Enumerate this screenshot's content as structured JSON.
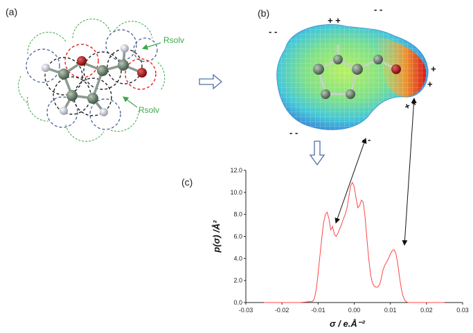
{
  "panels": {
    "a": {
      "label": "(a)",
      "rsolv_top": "Rsolv",
      "rsolv_bottom": "Rsolv"
    },
    "b": {
      "label": "(b)"
    },
    "c": {
      "label": "(c)"
    }
  },
  "charge_signs": {
    "top_positive": "+ +",
    "top_negative": "- -",
    "left_negative": "- -",
    "right_positive_1": "+",
    "right_positive_2": "+",
    "bottom_right_positive": "+ +",
    "bottom_left_negative": "- -",
    "bottom_mid_negative": "- -"
  },
  "colors": {
    "curve": "#ff4444",
    "rsolv": "#3aa84a",
    "arrow_hollow": "#4f6fa8",
    "circle_black": "#222222",
    "circle_red": "#e02020",
    "circle_blue": "#4a5f9a"
  },
  "chart_data": {
    "type": "line",
    "xlabel": "σ / e.Å⁻²",
    "ylabel": "p(σ) /Å²",
    "xlim": [
      -0.03,
      0.03
    ],
    "ylim": [
      0,
      12
    ],
    "xticks": [
      "-0.03",
      "-0.02",
      "-0.01",
      "0.00",
      "0.01",
      "0.02",
      "0.03"
    ],
    "yticks": [
      "0.0",
      "2.0",
      "4.0",
      "6.0",
      "8.0",
      "10.0",
      "12.0"
    ],
    "grid": false,
    "series": [
      {
        "x": [
          -0.025,
          -0.015,
          -0.0115,
          -0.011,
          -0.0105,
          -0.01,
          -0.0095,
          -0.009,
          -0.0085,
          -0.008,
          -0.0075,
          -0.007,
          -0.0065,
          -0.006,
          -0.0055,
          -0.005,
          -0.0045,
          -0.004,
          -0.0035,
          -0.003,
          -0.0025,
          -0.002,
          -0.0015,
          -0.001,
          -0.0005,
          0.0,
          0.0005,
          0.001,
          0.0015,
          0.002,
          0.0025,
          0.003,
          0.0035,
          0.004,
          0.0045,
          0.005,
          0.0055,
          0.006,
          0.0065,
          0.007,
          0.0075,
          0.008,
          0.0085,
          0.009,
          0.0095,
          0.01,
          0.0105,
          0.011,
          0.0115,
          0.012,
          0.0125,
          0.013,
          0.0135,
          0.014,
          0.0145,
          0.015,
          0.016,
          0.025
        ],
        "y": [
          0,
          0,
          0.1,
          0.4,
          1.2,
          2.6,
          4.2,
          5.8,
          7.2,
          8.0,
          8.2,
          7.6,
          6.6,
          6.9,
          6.2,
          6.0,
          6.3,
          6.7,
          7.1,
          7.6,
          8.0,
          8.6,
          9.6,
          10.6,
          10.9,
          10.5,
          9.5,
          8.6,
          8.8,
          9.3,
          9.1,
          7.8,
          5.8,
          4.0,
          2.6,
          1.8,
          1.5,
          1.4,
          1.4,
          1.6,
          2.2,
          3.0,
          3.4,
          3.7,
          4.0,
          4.4,
          4.7,
          4.8,
          4.5,
          3.6,
          2.4,
          1.3,
          0.6,
          0.2,
          0.05,
          0,
          0,
          0
        ]
      }
    ]
  }
}
